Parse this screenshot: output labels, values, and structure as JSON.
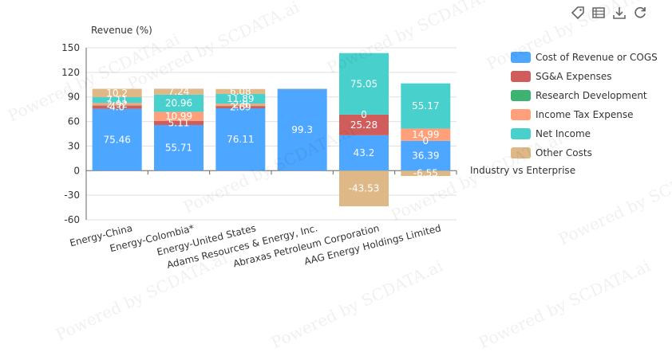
{
  "toolbar": {
    "icons": [
      "tag-icon",
      "data-view-icon",
      "download-icon",
      "refresh-icon"
    ]
  },
  "watermark": "Powered by SCDATA.ai",
  "chart_data": {
    "type": "bar",
    "stacked": true,
    "title": "",
    "ylabel": "Revenue (%)",
    "xlabel": "Industry vs Enterprise",
    "ylim": [
      -60,
      150
    ],
    "yticks": [
      -60,
      -30,
      0,
      30,
      60,
      90,
      120,
      150
    ],
    "grid": true,
    "legend_position": "top-right",
    "categories": [
      "Energy-China",
      "Energy-Colombia*",
      "Energy-United States",
      "Adams Resources & Energy, Inc.",
      "Abraxas Petroleum Corporation",
      "AAG Energy Holdings Limited"
    ],
    "series": [
      {
        "name": "Cost of Revenue or COGS",
        "color": "#4da6ff",
        "values": [
          75.46,
          55.71,
          76.11,
          99.3,
          43.2,
          36.39
        ],
        "labels": [
          "75.46",
          "55.71",
          "76.11",
          "99.3",
          "43.2",
          "36.39"
        ]
      },
      {
        "name": "SG&A Expenses",
        "color": "#d05c5c",
        "values": [
          4.0,
          5.11,
          2.69,
          0.4,
          25.28,
          0
        ],
        "labels": [
          "4.0",
          "5.11",
          "2.69",
          "",
          "25.28",
          "0"
        ]
      },
      {
        "name": "Research Development",
        "color": "#3cb371",
        "values": [
          0.2,
          0,
          0.1,
          0,
          0,
          0
        ],
        "labels": [
          "",
          "",
          "",
          "",
          "0",
          ""
        ]
      },
      {
        "name": "Income Tax Expense",
        "color": "#ffa07a",
        "values": [
          2.92,
          10.99,
          2.8,
          0.2,
          0,
          14.99
        ],
        "labels": [
          "2.92",
          "10.99",
          "2.8",
          "",
          "",
          "14.99"
        ]
      },
      {
        "name": "Net Income",
        "color": "#48d1cc",
        "values": [
          7.11,
          20.96,
          11.89,
          0.1,
          75.05,
          55.17
        ],
        "labels": [
          "7.11",
          "20.96",
          "11.89",
          "",
          "75.05",
          "55.17"
        ]
      },
      {
        "name": "Other Costs",
        "color": "#deb887",
        "values": [
          10.2,
          7.24,
          6.08,
          0,
          -43.53,
          -6.55
        ],
        "labels": [
          "10.2",
          "7.24",
          "6.08",
          "",
          "-43.53",
          "-6.55"
        ]
      }
    ]
  }
}
